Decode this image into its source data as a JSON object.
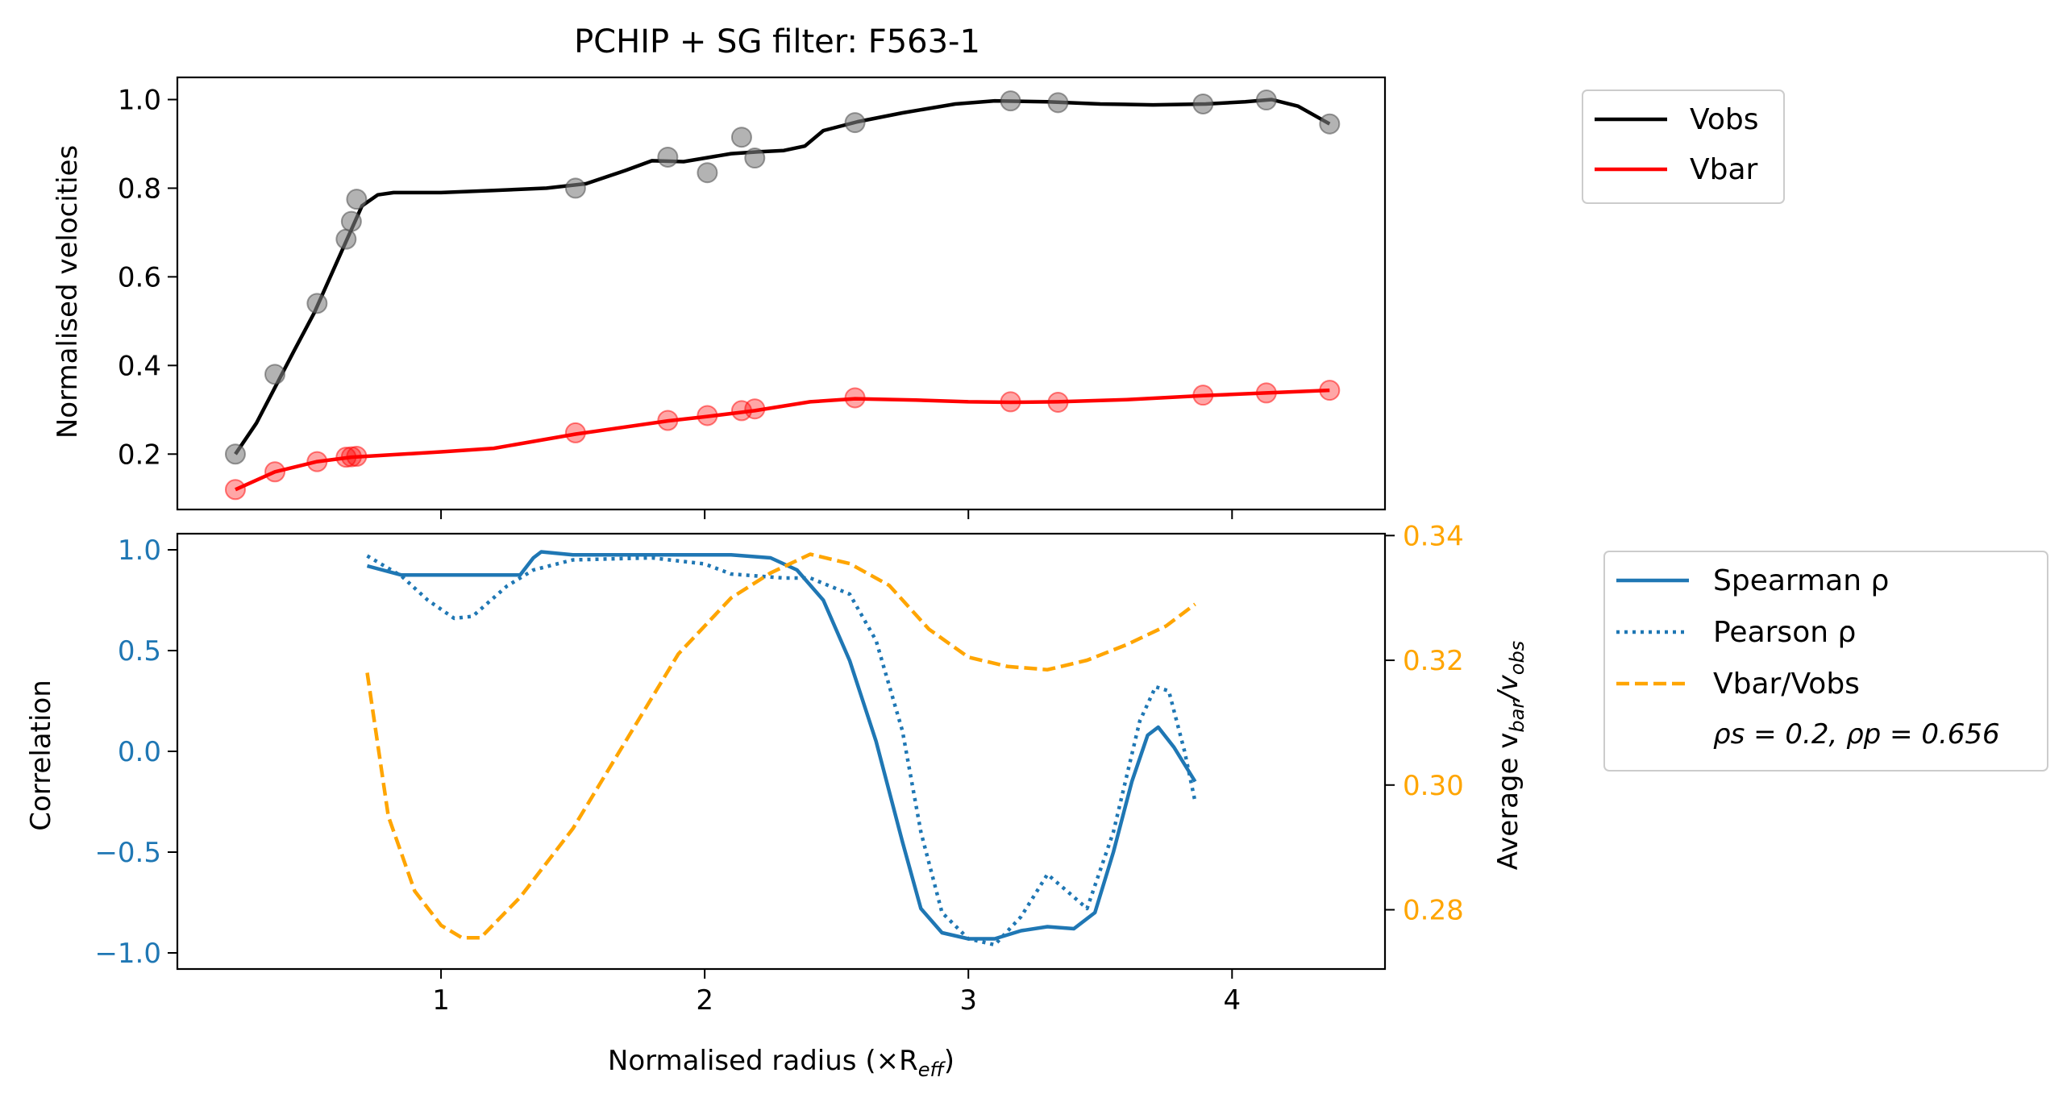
{
  "chart_data": [
    {
      "type": "line",
      "title": "PCHIP + SG filter: F563-1",
      "xlabel": "",
      "ylabel": "Normalised velocities",
      "xlim": [
        0.0,
        4.58
      ],
      "ylim": [
        0.075,
        1.05
      ],
      "xticks": [
        1,
        2,
        3,
        4
      ],
      "yticks": [
        0.2,
        0.4,
        0.6,
        0.8,
        1.0
      ],
      "ytick_labels": [
        "0.2",
        "0.4",
        "0.6",
        "0.8",
        "1.0"
      ],
      "legend_position": "outside-right-top",
      "series": [
        {
          "name": "Vobs",
          "color": "#000000",
          "line": [
            [
              0.22,
              0.2
            ],
            [
              0.3,
              0.27
            ],
            [
              0.37,
              0.35
            ],
            [
              0.44,
              0.43
            ],
            [
              0.52,
              0.52
            ],
            [
              0.58,
              0.6
            ],
            [
              0.64,
              0.68
            ],
            [
              0.7,
              0.76
            ],
            [
              0.76,
              0.785
            ],
            [
              0.82,
              0.79
            ],
            [
              0.9,
              0.79
            ],
            [
              1.0,
              0.79
            ],
            [
              1.2,
              0.795
            ],
            [
              1.4,
              0.8
            ],
            [
              1.55,
              0.81
            ],
            [
              1.7,
              0.84
            ],
            [
              1.8,
              0.862
            ],
            [
              1.92,
              0.86
            ],
            [
              2.0,
              0.868
            ],
            [
              2.1,
              0.878
            ],
            [
              2.2,
              0.882
            ],
            [
              2.3,
              0.885
            ],
            [
              2.38,
              0.895
            ],
            [
              2.45,
              0.93
            ],
            [
              2.58,
              0.95
            ],
            [
              2.75,
              0.97
            ],
            [
              2.95,
              0.99
            ],
            [
              3.1,
              0.997
            ],
            [
              3.3,
              0.995
            ],
            [
              3.5,
              0.99
            ],
            [
              3.7,
              0.988
            ],
            [
              3.9,
              0.99
            ],
            [
              4.05,
              0.995
            ],
            [
              4.15,
              1.0
            ],
            [
              4.25,
              0.985
            ],
            [
              4.37,
              0.945
            ]
          ],
          "points": [
            [
              0.22,
              0.2
            ],
            [
              0.37,
              0.38
            ],
            [
              0.53,
              0.54
            ],
            [
              0.64,
              0.685
            ],
            [
              0.66,
              0.725
            ],
            [
              0.68,
              0.775
            ],
            [
              1.51,
              0.8
            ],
            [
              1.86,
              0.87
            ],
            [
              2.01,
              0.835
            ],
            [
              2.14,
              0.915
            ],
            [
              2.19,
              0.868
            ],
            [
              2.57,
              0.948
            ],
            [
              3.16,
              0.997
            ],
            [
              3.34,
              0.993
            ],
            [
              3.89,
              0.99
            ],
            [
              4.13,
              0.999
            ],
            [
              4.37,
              0.945
            ]
          ]
        },
        {
          "name": "Vbar",
          "color": "#ff0000",
          "line": [
            [
              0.22,
              0.12
            ],
            [
              0.37,
              0.16
            ],
            [
              0.53,
              0.183
            ],
            [
              0.66,
              0.193
            ],
            [
              0.8,
              0.198
            ],
            [
              1.0,
              0.205
            ],
            [
              1.2,
              0.213
            ],
            [
              1.51,
              0.245
            ],
            [
              1.86,
              0.275
            ],
            [
              2.01,
              0.285
            ],
            [
              2.19,
              0.298
            ],
            [
              2.4,
              0.318
            ],
            [
              2.57,
              0.325
            ],
            [
              2.8,
              0.322
            ],
            [
              3.0,
              0.318
            ],
            [
              3.16,
              0.317
            ],
            [
              3.34,
              0.318
            ],
            [
              3.6,
              0.323
            ],
            [
              3.89,
              0.332
            ],
            [
              4.13,
              0.338
            ],
            [
              4.37,
              0.344
            ]
          ],
          "points": [
            [
              0.22,
              0.12
            ],
            [
              0.37,
              0.16
            ],
            [
              0.53,
              0.183
            ],
            [
              0.64,
              0.193
            ],
            [
              0.66,
              0.194
            ],
            [
              0.68,
              0.195
            ],
            [
              1.51,
              0.248
            ],
            [
              1.86,
              0.276
            ],
            [
              2.01,
              0.287
            ],
            [
              2.14,
              0.298
            ],
            [
              2.19,
              0.302
            ],
            [
              2.57,
              0.327
            ],
            [
              3.16,
              0.318
            ],
            [
              3.34,
              0.317
            ],
            [
              3.89,
              0.333
            ],
            [
              4.13,
              0.338
            ],
            [
              4.37,
              0.344
            ]
          ]
        }
      ]
    },
    {
      "type": "line",
      "title": "",
      "xlabel": "Normalised radius (×R",
      "xlabel_sub": "eff",
      "xlabel_end": ")",
      "ylabel": "Correlation",
      "y2label": "Average v",
      "y2label_sub1": "bar",
      "y2label_mid": "/v",
      "y2label_sub2": "obs",
      "xlim": [
        0.0,
        4.58
      ],
      "ylim": [
        -1.08,
        1.08
      ],
      "y2lim": [
        0.2705,
        0.3403
      ],
      "xticks": [
        1,
        2,
        3,
        4
      ],
      "xtick_labels": [
        "1",
        "2",
        "3",
        "4"
      ],
      "yticks": [
        -1.0,
        -0.5,
        0.0,
        0.5,
        1.0
      ],
      "ytick_labels": [
        "−1.0",
        "−0.5",
        "0.0",
        "0.5",
        "1.0"
      ],
      "y2ticks": [
        0.28,
        0.3,
        0.32,
        0.34
      ],
      "y2tick_labels": [
        "0.28",
        "0.30",
        "0.32",
        "0.34"
      ],
      "legend_position": "outside-right",
      "legend_note": "ρs = 0.2, ρp = 0.656",
      "series": [
        {
          "name": "Spearman ρ",
          "axis": "left",
          "color": "#1f77b4",
          "style": "solid",
          "points": [
            [
              0.72,
              0.92
            ],
            [
              0.85,
              0.875
            ],
            [
              1.0,
              0.875
            ],
            [
              1.2,
              0.875
            ],
            [
              1.3,
              0.875
            ],
            [
              1.35,
              0.96
            ],
            [
              1.38,
              0.99
            ],
            [
              1.5,
              0.975
            ],
            [
              1.8,
              0.975
            ],
            [
              2.1,
              0.975
            ],
            [
              2.25,
              0.96
            ],
            [
              2.35,
              0.9
            ],
            [
              2.45,
              0.75
            ],
            [
              2.55,
              0.45
            ],
            [
              2.65,
              0.05
            ],
            [
              2.75,
              -0.45
            ],
            [
              2.82,
              -0.78
            ],
            [
              2.9,
              -0.9
            ],
            [
              3.0,
              -0.93
            ],
            [
              3.1,
              -0.93
            ],
            [
              3.2,
              -0.89
            ],
            [
              3.3,
              -0.87
            ],
            [
              3.4,
              -0.88
            ],
            [
              3.48,
              -0.8
            ],
            [
              3.55,
              -0.5
            ],
            [
              3.62,
              -0.15
            ],
            [
              3.68,
              0.08
            ],
            [
              3.72,
              0.12
            ],
            [
              3.78,
              0.02
            ],
            [
              3.86,
              -0.15
            ]
          ]
        },
        {
          "name": "Pearson ρ",
          "axis": "left",
          "color": "#1f77b4",
          "style": "dotted",
          "points": [
            [
              0.72,
              0.97
            ],
            [
              0.85,
              0.87
            ],
            [
              0.95,
              0.75
            ],
            [
              1.05,
              0.66
            ],
            [
              1.12,
              0.67
            ],
            [
              1.25,
              0.82
            ],
            [
              1.35,
              0.9
            ],
            [
              1.5,
              0.95
            ],
            [
              1.8,
              0.96
            ],
            [
              2.0,
              0.93
            ],
            [
              2.1,
              0.88
            ],
            [
              2.3,
              0.86
            ],
            [
              2.4,
              0.86
            ],
            [
              2.55,
              0.78
            ],
            [
              2.65,
              0.55
            ],
            [
              2.75,
              0.1
            ],
            [
              2.82,
              -0.4
            ],
            [
              2.9,
              -0.8
            ],
            [
              3.0,
              -0.93
            ],
            [
              3.1,
              -0.96
            ],
            [
              3.2,
              -0.82
            ],
            [
              3.3,
              -0.61
            ],
            [
              3.38,
              -0.7
            ],
            [
              3.45,
              -0.78
            ],
            [
              3.55,
              -0.4
            ],
            [
              3.65,
              0.15
            ],
            [
              3.71,
              0.32
            ],
            [
              3.76,
              0.3
            ],
            [
              3.82,
              0.0
            ],
            [
              3.86,
              -0.25
            ]
          ]
        },
        {
          "name": "Vbar/Vobs",
          "axis": "right",
          "color": "#ffa500",
          "style": "dashed",
          "points": [
            [
              0.72,
              0.318
            ],
            [
              0.8,
              0.295
            ],
            [
              0.9,
              0.283
            ],
            [
              1.0,
              0.2775
            ],
            [
              1.08,
              0.2755
            ],
            [
              1.15,
              0.2755
            ],
            [
              1.3,
              0.282
            ],
            [
              1.5,
              0.293
            ],
            [
              1.7,
              0.307
            ],
            [
              1.9,
              0.321
            ],
            [
              2.1,
              0.33
            ],
            [
              2.25,
              0.334
            ],
            [
              2.4,
              0.337
            ],
            [
              2.55,
              0.3355
            ],
            [
              2.7,
              0.332
            ],
            [
              2.85,
              0.325
            ],
            [
              3.0,
              0.3205
            ],
            [
              3.15,
              0.319
            ],
            [
              3.3,
              0.3185
            ],
            [
              3.45,
              0.32
            ],
            [
              3.6,
              0.3225
            ],
            [
              3.75,
              0.3255
            ],
            [
              3.86,
              0.329
            ]
          ]
        }
      ]
    }
  ]
}
